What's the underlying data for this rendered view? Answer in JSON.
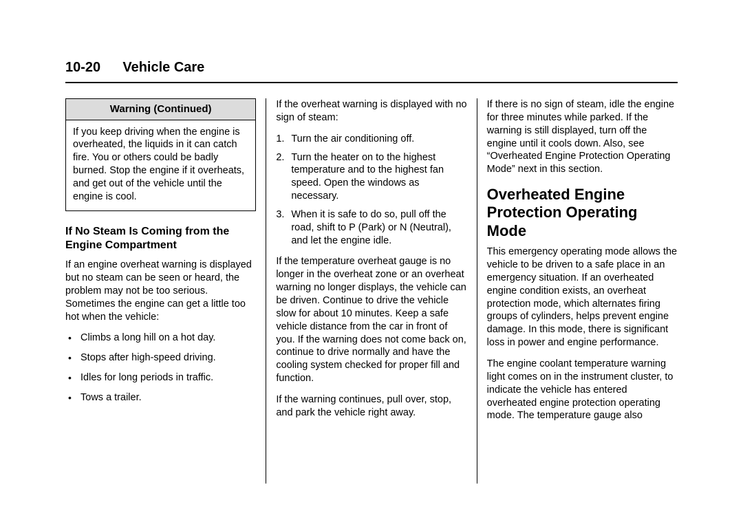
{
  "header": {
    "page_number": "10-20",
    "chapter_title": "Vehicle Care"
  },
  "col1": {
    "warning": {
      "title": "Warning (Continued)",
      "body": "If you keep driving when the engine is overheated, the liquids in it can catch fire. You or others could be badly burned. Stop the engine if it overheats, and get out of the vehicle until the engine is cool."
    },
    "subhead": "If No Steam Is Coming from the Engine Compartment",
    "intro": "If an engine overheat warning is displayed but no steam can be seen or heard, the problem may not be too serious. Sometimes the engine can get a little too hot when the vehicle:",
    "bullets": [
      "Climbs a long hill on a hot day.",
      "Stops after high-speed driving.",
      "Idles for long periods in traffic.",
      "Tows a trailer."
    ]
  },
  "col2": {
    "intro": "If the overheat warning is displayed with no sign of steam:",
    "steps": [
      "Turn the air conditioning off.",
      "Turn the heater on to the highest temperature and to the highest fan speed. Open the windows as necessary.",
      "When it is safe to do so, pull off the road, shift to P (Park) or N (Neutral), and let the engine idle."
    ],
    "para1": "If the temperature overheat gauge is no longer in the overheat zone or an overheat warning no longer displays, the vehicle can be driven. Continue to drive the vehicle slow for about 10 minutes. Keep a safe vehicle distance from the car in front of you. If the warning does not come back on, continue to drive normally and have the cooling system checked for proper fill and function.",
    "para2": "If the warning continues, pull over, stop, and park the vehicle right away."
  },
  "col3": {
    "para1": "If there is no sign of steam, idle the engine for three minutes while parked. If the warning is still displayed, turn off the engine until it cools down. Also, see “Overheated Engine Protection Operating Mode” next in this section.",
    "section_head": "Overheated Engine Protection Operating Mode",
    "para2": "This emergency operating mode allows the vehicle to be driven to a safe place in an emergency situation. If an overheated engine condition exists, an overheat protection mode, which alternates firing groups of cylinders, helps prevent engine damage. In this mode, there is significant loss in power and engine performance.",
    "para3": "The engine coolant temperature warning light comes on in the instrument cluster, to indicate the vehicle has entered overheated engine protection operating mode. The temperature gauge also"
  }
}
